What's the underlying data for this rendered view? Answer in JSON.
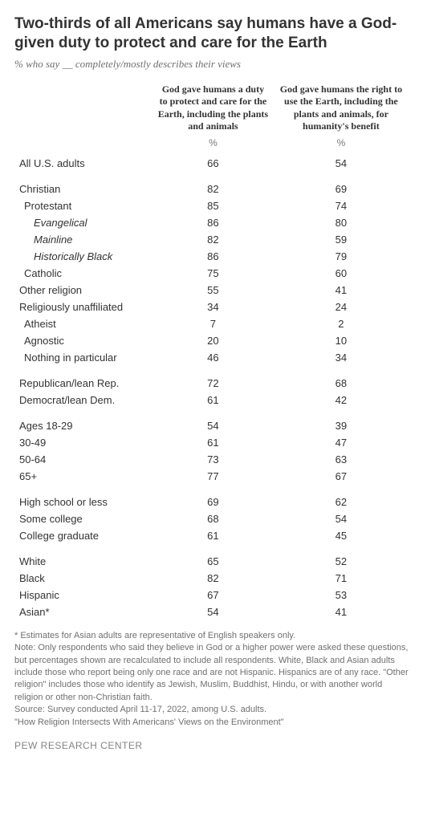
{
  "title": "Two-thirds of all Americans say humans have a God-given duty to protect and care for the Earth",
  "subtitle": "% who say __ completely/mostly describes their views",
  "columns": {
    "col1": "God gave humans a duty to protect and care for the Earth, including the plants and animals",
    "col2": "God gave humans the right to use the Earth, including the plants and animals, for humanity's benefit",
    "unit": "%"
  },
  "groups": [
    {
      "rows": [
        {
          "label": "All U.S. adults",
          "v1": 66,
          "v2": 54,
          "indent": 0
        }
      ]
    },
    {
      "rows": [
        {
          "label": "Christian",
          "v1": 82,
          "v2": 69,
          "indent": 0
        },
        {
          "label": "Protestant",
          "v1": 85,
          "v2": 74,
          "indent": 1
        },
        {
          "label": "Evangelical",
          "v1": 86,
          "v2": 80,
          "indent": 2
        },
        {
          "label": "Mainline",
          "v1": 82,
          "v2": 59,
          "indent": 2
        },
        {
          "label": "Historically Black",
          "v1": 86,
          "v2": 79,
          "indent": 2
        },
        {
          "label": "Catholic",
          "v1": 75,
          "v2": 60,
          "indent": 1
        },
        {
          "label": "Other religion",
          "v1": 55,
          "v2": 41,
          "indent": 0
        },
        {
          "label": "Religiously unaffiliated",
          "v1": 34,
          "v2": 24,
          "indent": 0
        },
        {
          "label": "Atheist",
          "v1": 7,
          "v2": 2,
          "indent": 1
        },
        {
          "label": "Agnostic",
          "v1": 20,
          "v2": 10,
          "indent": 1
        },
        {
          "label": "Nothing in particular",
          "v1": 46,
          "v2": 34,
          "indent": 1
        }
      ]
    },
    {
      "rows": [
        {
          "label": "Republican/lean Rep.",
          "v1": 72,
          "v2": 68,
          "indent": 0
        },
        {
          "label": "Democrat/lean Dem.",
          "v1": 61,
          "v2": 42,
          "indent": 0
        }
      ]
    },
    {
      "rows": [
        {
          "label": "Ages 18-29",
          "v1": 54,
          "v2": 39,
          "indent": 0
        },
        {
          "label": "30-49",
          "v1": 61,
          "v2": 47,
          "indent": 0
        },
        {
          "label": "50-64",
          "v1": 73,
          "v2": 63,
          "indent": 0
        },
        {
          "label": "65+",
          "v1": 77,
          "v2": 67,
          "indent": 0
        }
      ]
    },
    {
      "rows": [
        {
          "label": "High school or less",
          "v1": 69,
          "v2": 62,
          "indent": 0
        },
        {
          "label": "Some college",
          "v1": 68,
          "v2": 54,
          "indent": 0
        },
        {
          "label": "College graduate",
          "v1": 61,
          "v2": 45,
          "indent": 0
        }
      ]
    },
    {
      "rows": [
        {
          "label": "White",
          "v1": 65,
          "v2": 52,
          "indent": 0
        },
        {
          "label": "Black",
          "v1": 82,
          "v2": 71,
          "indent": 0
        },
        {
          "label": "Hispanic",
          "v1": 67,
          "v2": 53,
          "indent": 0
        },
        {
          "label": "Asian*",
          "v1": 54,
          "v2": 41,
          "indent": 0
        }
      ]
    }
  ],
  "footnote_lines": [
    "* Estimates for Asian adults are representative of English speakers only.",
    "Note: Only respondents who said they believe in God or a higher power were asked these questions, but percentages shown are recalculated to include all respondents. White, Black and Asian adults include those who report being only one race and are not Hispanic. Hispanics are of any race. \"Other religion\" includes those who identify as Jewish, Muslim, Buddhist, Hindu, or with another world religion or other non-Christian faith.",
    "Source: Survey conducted April 11-17, 2022, among U.S. adults.",
    "\"How Religion Intersects With Americans' Views on the Environment\""
  ],
  "source_name": "PEW RESEARCH CENTER",
  "style": {
    "title_fontsize": 19,
    "subtitle_fontsize": 13,
    "body_fontsize": 13,
    "footnote_fontsize": 11,
    "text_color": "#333333",
    "muted_color": "#6f6f6f",
    "background": "#ffffff"
  }
}
